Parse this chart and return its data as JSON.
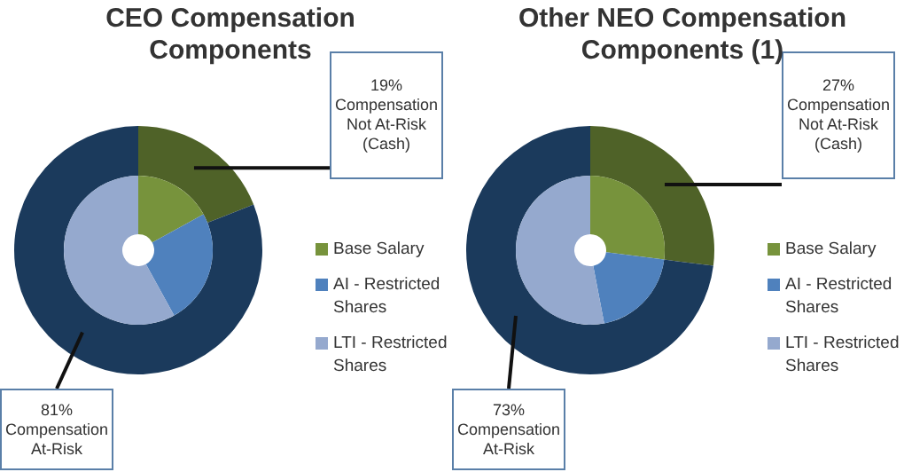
{
  "chart_data": [
    {
      "type": "donut",
      "title": "CEO Compensation Components",
      "categories": [
        "Base Salary",
        "AI - Restricted Shares",
        "LTI - Restricted Shares"
      ],
      "legend": "right",
      "values": [
        17,
        25,
        58
      ],
      "colors": [
        "#77933c",
        "#4f81bd",
        "#95a9ce"
      ]
    },
    {
      "type": "donut",
      "categories": [
        null,
        null
      ],
      "values": [
        19,
        81
      ],
      "colors": [
        "#4f6228",
        "#1b3a5c"
      ],
      "value_labels": [
        "19% Compensation Not At-Risk (Cash)",
        "81% Compensation At-Risk"
      ]
    },
    {
      "type": "donut",
      "title": "Other NEO Compensation Components (1)",
      "categories": [
        "Base Salary",
        "AI - Restricted Shares",
        "LTI - Restricted Shares"
      ],
      "legend": "right",
      "values": [
        27,
        20,
        53
      ],
      "colors": [
        "#77933c",
        "#4f81bd",
        "#95a9ce"
      ]
    },
    {
      "type": "donut",
      "categories": [
        null,
        null
      ],
      "values": [
        27,
        73
      ],
      "colors": [
        "#4f6228",
        "#1b3a5c"
      ],
      "value_labels": [
        "27% Compensation Not At-Risk (Cash)",
        "73% Compensation At-Risk"
      ]
    }
  ]
}
